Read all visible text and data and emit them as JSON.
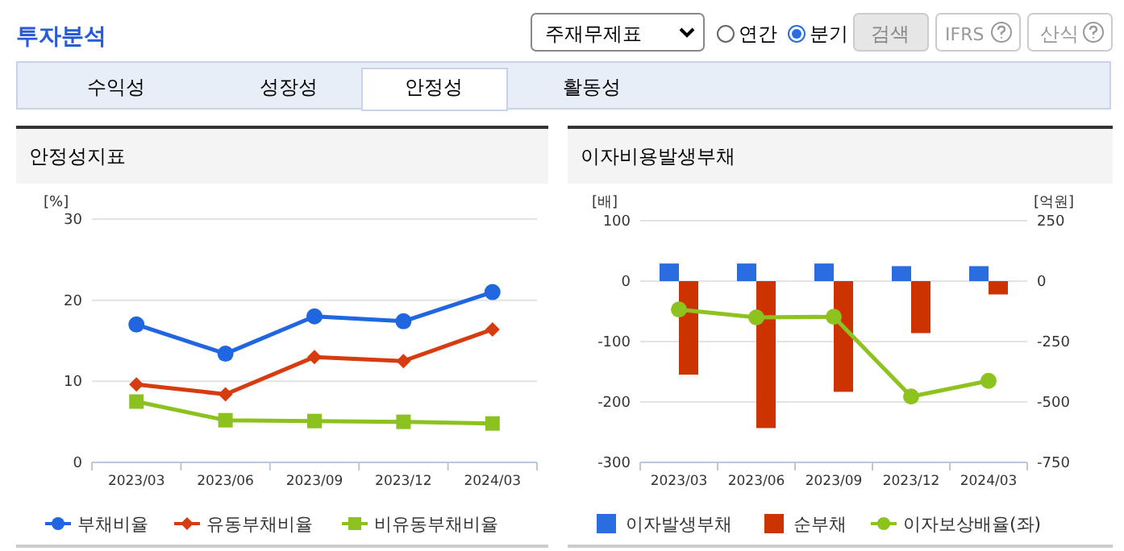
{
  "chart_data": [
    {
      "type": "other",
      "title": "투자분석",
      "annotations": [
        "주재무제표",
        "연간",
        "분기",
        "검색",
        "IFRS",
        "산식",
        "수익성",
        "성장성",
        "안정성",
        "활동성"
      ]
    },
    {
      "type": "line",
      "title": "안정성지표",
      "ylabel": "[%]",
      "categories": [
        "2023/03",
        "2023/06",
        "2023/09",
        "2023/12",
        "2024/03"
      ],
      "ylim": [
        0,
        30
      ],
      "yticks": [
        0,
        10,
        20,
        30
      ],
      "grid": "y",
      "legend": "bottom",
      "series": [
        {
          "name": "부채비율",
          "color": "#1f66e0",
          "marker": "circle",
          "values": [
            17.0,
            13.4,
            18.0,
            17.4,
            21.0
          ]
        },
        {
          "name": "유동부채비율",
          "color": "#d63c10",
          "marker": "diamond",
          "values": [
            9.6,
            8.4,
            13.0,
            12.5,
            16.4
          ]
        },
        {
          "name": "비유동부채비율",
          "color": "#8cc21f",
          "marker": "square",
          "values": [
            7.5,
            5.2,
            5.1,
            5.0,
            4.8
          ]
        }
      ]
    },
    {
      "type": "bar",
      "title": "이자비용발생부채",
      "ylabel": "[배]",
      "y2label": "[억원]",
      "categories": [
        "2023/03",
        "2023/06",
        "2023/09",
        "2023/12",
        "2024/03"
      ],
      "ylim": [
        -300,
        100
      ],
      "yticks": [
        -300,
        -200,
        -100,
        0,
        100
      ],
      "y2lim": [
        -750,
        250
      ],
      "y2ticks": [
        -750,
        -500,
        -250,
        0,
        250
      ],
      "grid": "y",
      "legend": "bottom",
      "series": [
        {
          "name": "이자발생부채",
          "color": "#2a6de0",
          "axis": "y2",
          "values": [
            73,
            73,
            73,
            62,
            62
          ]
        },
        {
          "name": "순부채",
          "color": "#cc3300",
          "axis": "y2",
          "values": [
            -387,
            -608,
            -458,
            -215,
            -55
          ]
        },
        {
          "name": "이자보상배율(좌)",
          "type": "line",
          "color": "#8dc21f",
          "marker": "circle",
          "values": [
            -47,
            -60,
            -59,
            -191,
            -165
          ]
        }
      ]
    }
  ]
}
